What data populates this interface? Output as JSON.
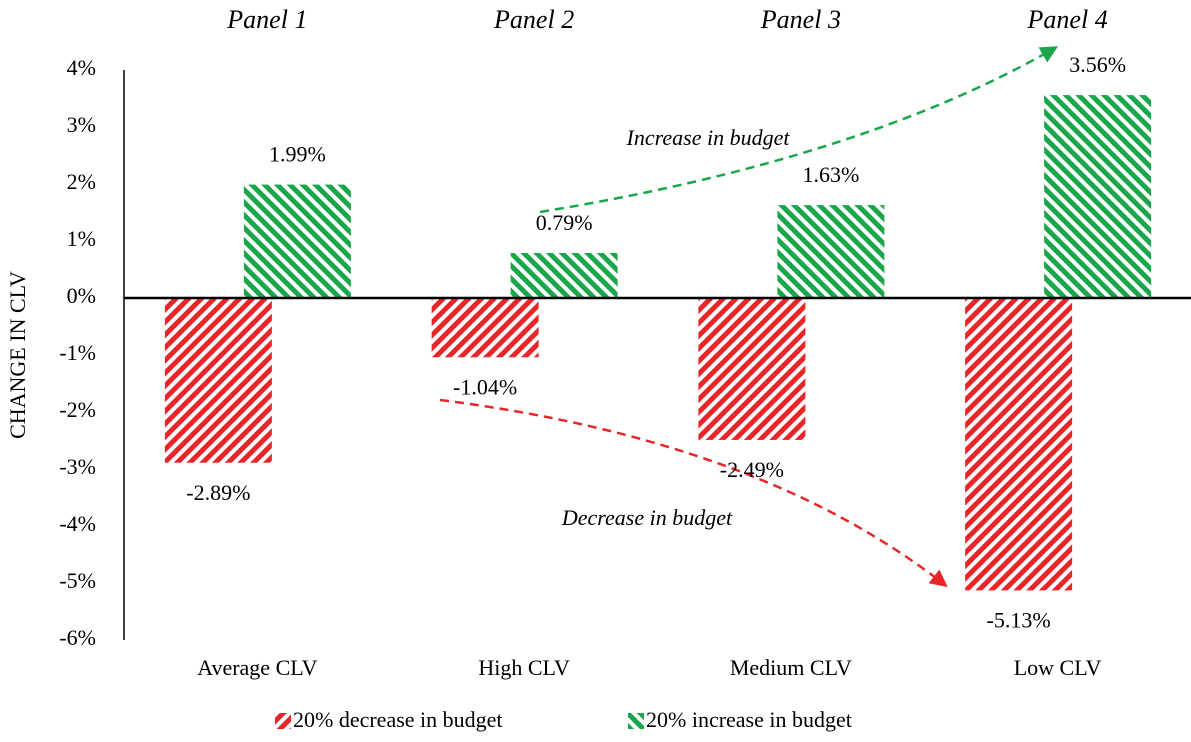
{
  "chart_data": {
    "type": "bar",
    "y_label": "CHANGE IN CLV",
    "panels": [
      "Panel 1",
      "Panel 2",
      "Panel 3",
      "Panel 4"
    ],
    "annotations": [
      "Increase in budget",
      "Decrease in budget"
    ],
    "categories": [
      "Average CLV",
      "High CLV",
      "Medium CLV",
      "Low CLV"
    ],
    "series": [
      {
        "name": "20% decrease in budget",
        "color": "#e8262a",
        "values": [
          -2.89,
          -1.04,
          -2.49,
          -5.13
        ],
        "value_labels": [
          "-2.89%",
          "-1.04%",
          "-2.49%",
          "-5.13%"
        ]
      },
      {
        "name": "20% increase in budget",
        "color": "#1aa64a",
        "values": [
          1.99,
          0.79,
          1.63,
          3.56
        ],
        "value_labels": [
          "1.99%",
          "0.79%",
          "1.63%",
          "3.56%"
        ]
      }
    ],
    "ylim": [
      -6,
      4
    ],
    "yticks": [
      {
        "value": -6,
        "label": "-6%"
      },
      {
        "value": -5,
        "label": "-5%"
      },
      {
        "value": -4,
        "label": "-4%"
      },
      {
        "value": -3,
        "label": "-3%"
      },
      {
        "value": -2,
        "label": "-2%"
      },
      {
        "value": -1,
        "label": "-1%"
      },
      {
        "value": 0,
        "label": "0%"
      },
      {
        "value": 1,
        "label": "1%"
      },
      {
        "value": 2,
        "label": "2%"
      },
      {
        "value": 3,
        "label": "3%"
      },
      {
        "value": 4,
        "label": "4%"
      }
    ],
    "grid": false
  }
}
